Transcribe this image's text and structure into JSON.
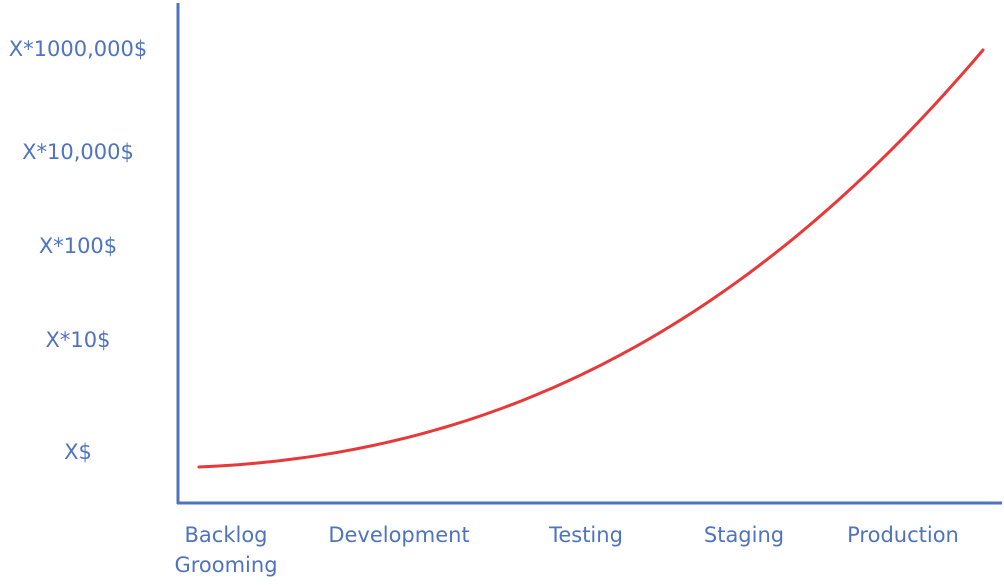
{
  "chart_data": {
    "type": "line",
    "title": "",
    "xlabel": "",
    "ylabel": "",
    "categories": [
      "Backlog Grooming",
      "Development",
      "Testing",
      "Staging",
      "Production"
    ],
    "x_tick_lines": [
      [
        "Backlog",
        "Grooming"
      ],
      [
        "Development"
      ],
      [
        "Testing"
      ],
      [
        "Staging"
      ],
      [
        "Production"
      ]
    ],
    "y_ticks": [
      {
        "label": "X$",
        "value": 1
      },
      {
        "label": "X*10$",
        "value": 10
      },
      {
        "label": "X*100$",
        "value": 100
      },
      {
        "label": "X*10,000$",
        "value": 10000
      },
      {
        "label": "X*1000,000$",
        "value": 1000000
      }
    ],
    "y_scale": "log",
    "series": [
      {
        "color": "#e8393a",
        "values": [
          1,
          3,
          20,
          300,
          1000000
        ]
      }
    ],
    "grid": false,
    "legend": "none",
    "axis_color": "#4f73be",
    "label_color": "#4f73be"
  }
}
